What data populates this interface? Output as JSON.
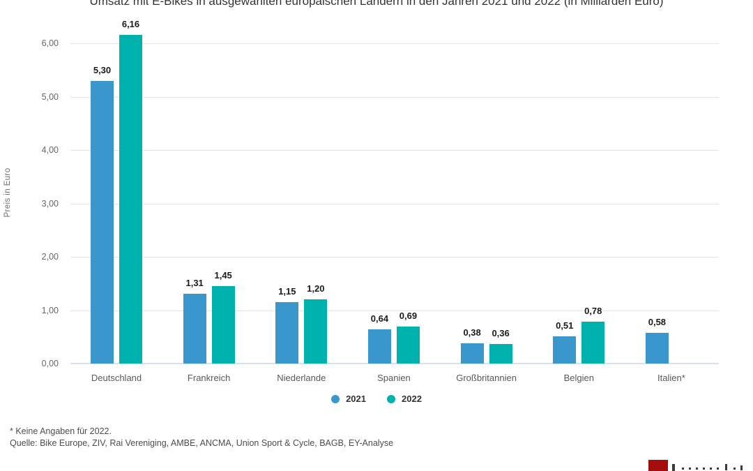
{
  "chart": {
    "title": "Umsatz mit E-Bikes in ausgewählten europäischen Ländern in den Jahren 2021 und 2022 (in Milliarden Euro)",
    "y_axis_label": "Preis in Euro",
    "y_ticks": [
      "6,00",
      "5,00",
      "4,00",
      "3,00",
      "2,00",
      "1,00",
      "0,00"
    ],
    "footnote": "* Keine Angaben für 2022.",
    "source": "Quelle: Bike Europe, ZIV, Rai Vereniging, AMBE, ANCMA, Union Sport & Cycle, BAGB, EY-Analyse"
  },
  "chart_data": {
    "type": "bar",
    "title": "Umsatz mit E-Bikes in ausgewählten europäischen Ländern in den Jahren 2021 und 2022 (in Milliarden Euro)",
    "xlabel": "",
    "ylabel": "Preis in Euro",
    "ylim": [
      0,
      6.5
    ],
    "grid": true,
    "legend_position": "bottom",
    "categories": [
      "Deutschland",
      "Frankreich",
      "Niederlande",
      "Spanien",
      "Großbritannien",
      "Belgien",
      "Italien*"
    ],
    "series": [
      {
        "name": "2021",
        "color": "#3a97cc",
        "values": [
          5.3,
          1.31,
          1.15,
          0.64,
          0.38,
          0.51,
          0.58
        ],
        "labels": [
          "5,30",
          "1,31",
          "1,15",
          "0,64",
          "0,38",
          "0,51",
          "0,58"
        ]
      },
      {
        "name": "2022",
        "color": "#00b2ae",
        "values": [
          6.16,
          1.45,
          1.2,
          0.69,
          0.36,
          0.78,
          null
        ],
        "labels": [
          "6,16",
          "1,45",
          "1,20",
          "0,69",
          "0,36",
          "0,78",
          null
        ]
      }
    ]
  },
  "colors": {
    "series_2021": "#3a97cc",
    "series_2022": "#00b2ae",
    "gridline": "#e4e4e4",
    "axis_line": "#d6e0f0",
    "logo_red": "#a40e0e"
  }
}
